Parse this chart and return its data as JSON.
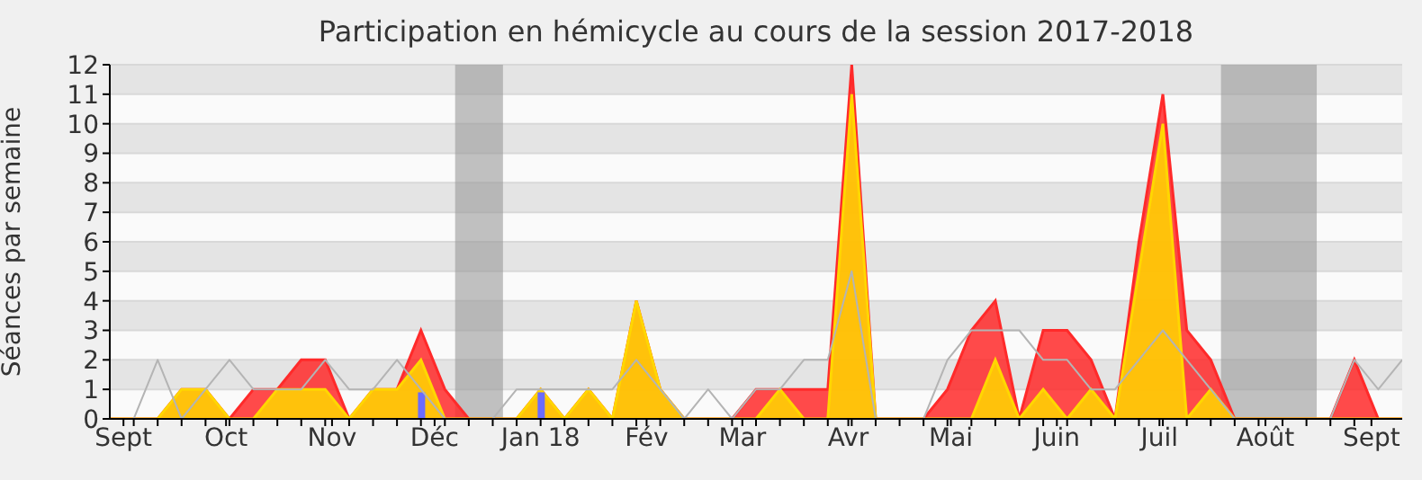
{
  "chart_data": {
    "type": "area",
    "title": "Participation en hémicycle au cours de la session 2017-2018",
    "ylabel": "Séances par semaine",
    "x": [
      "2017-08-28",
      "2017-09-04",
      "2017-09-11",
      "2017-09-18",
      "2017-09-25",
      "2017-10-02",
      "2017-10-09",
      "2017-10-16",
      "2017-10-23",
      "2017-10-30",
      "2017-11-06",
      "2017-11-13",
      "2017-11-20",
      "2017-11-27",
      "2017-12-04",
      "2017-12-11",
      "2017-12-18",
      "2017-12-25",
      "2018-01-01",
      "2018-01-08",
      "2018-01-15",
      "2018-01-22",
      "2018-01-29",
      "2018-02-05",
      "2018-02-12",
      "2018-02-19",
      "2018-02-26",
      "2018-03-05",
      "2018-03-12",
      "2018-03-19",
      "2018-03-26",
      "2018-04-02",
      "2018-04-09",
      "2018-04-16",
      "2018-04-23",
      "2018-04-30",
      "2018-05-07",
      "2018-05-14",
      "2018-05-21",
      "2018-05-28",
      "2018-06-04",
      "2018-06-11",
      "2018-06-18",
      "2018-06-25",
      "2018-07-02",
      "2018-07-09",
      "2018-07-16",
      "2018-07-23",
      "2018-07-30",
      "2018-08-06",
      "2018-08-13",
      "2018-08-20",
      "2018-08-27",
      "2018-09-03",
      "2018-09-10"
    ],
    "series": [
      {
        "color": "#ff2a2a",
        "values": [
          0,
          0,
          0,
          1,
          1,
          0,
          1,
          1,
          2,
          2,
          0,
          1,
          1,
          3,
          1,
          0,
          0,
          0,
          1,
          0,
          1,
          0,
          4,
          1,
          0,
          0,
          0,
          1,
          1,
          1,
          1,
          12,
          0,
          0,
          0,
          1,
          3,
          4,
          0,
          3,
          3,
          2,
          0,
          6,
          11,
          3,
          2,
          0,
          0,
          0,
          0,
          0,
          2,
          0,
          0
        ]
      },
      {
        "color": "#ffd700",
        "values": [
          0,
          0,
          0,
          1,
          1,
          0,
          0,
          1,
          1,
          1,
          0,
          1,
          1,
          2,
          0,
          0,
          0,
          0,
          1,
          0,
          1,
          0,
          4,
          1,
          0,
          0,
          0,
          0,
          1,
          0,
          0,
          11,
          0,
          0,
          0,
          0,
          0,
          2,
          0,
          1,
          0,
          1,
          0,
          5,
          10,
          0,
          1,
          0,
          0,
          0,
          0,
          0,
          0,
          0,
          0
        ]
      },
      {
        "type": "line",
        "color": "#b4b4b4",
        "values": [
          0,
          0,
          2,
          0,
          1,
          2,
          1,
          1,
          1,
          2,
          1,
          1,
          2,
          1,
          0,
          0,
          0,
          1,
          1,
          1,
          1,
          1,
          2,
          1,
          0,
          1,
          0,
          1,
          1,
          2,
          2,
          5,
          0,
          0,
          0,
          2,
          3,
          3,
          3,
          2,
          2,
          1,
          1,
          2,
          3,
          2,
          1,
          0,
          0,
          0,
          0,
          0,
          2,
          1,
          2
        ]
      },
      {
        "type": "bar",
        "color": "#6b6bff",
        "values": [
          null,
          null,
          null,
          null,
          null,
          null,
          null,
          null,
          null,
          null,
          null,
          null,
          null,
          0.9,
          null,
          null,
          null,
          null,
          0.9,
          null,
          null,
          null,
          null,
          null,
          null,
          null,
          null,
          null,
          null,
          null,
          null,
          null,
          null,
          null,
          null,
          null,
          null,
          null,
          null,
          null,
          null,
          null,
          null,
          null,
          null,
          null,
          null,
          null,
          null,
          null,
          null,
          null,
          null,
          null,
          null
        ]
      }
    ],
    "xlim": [
      "2017-08-28",
      "2018-09-10"
    ],
    "xticks": [
      {
        "value": "2017-09-01",
        "label": "Sept"
      },
      {
        "value": "2017-10-01",
        "label": "Oct"
      },
      {
        "value": "2017-11-01",
        "label": "Nov"
      },
      {
        "value": "2017-12-01",
        "label": "Déc"
      },
      {
        "value": "2018-01-01",
        "label": "Jan 18"
      },
      {
        "value": "2018-02-01",
        "label": "Fév"
      },
      {
        "value": "2018-03-01",
        "label": "Mar"
      },
      {
        "value": "2018-04-01",
        "label": "Avr"
      },
      {
        "value": "2018-05-01",
        "label": "Mai"
      },
      {
        "value": "2018-06-01",
        "label": "Juin"
      },
      {
        "value": "2018-07-01",
        "label": "Juil"
      },
      {
        "value": "2018-08-01",
        "label": "Août"
      },
      {
        "value": "2018-09-01",
        "label": "Sept"
      },
      {
        "value": "2017-09-04",
        "label": null
      },
      {
        "value": "2017-09-11",
        "label": null
      },
      {
        "value": "2017-09-18",
        "label": null
      },
      {
        "value": "2017-09-25",
        "label": null
      },
      {
        "value": "2017-10-02",
        "label": null
      },
      {
        "value": "2017-10-09",
        "label": null
      },
      {
        "value": "2017-10-16",
        "label": null
      },
      {
        "value": "2017-10-23",
        "label": null
      },
      {
        "value": "2017-10-30",
        "label": null
      },
      {
        "value": "2017-11-06",
        "label": null
      },
      {
        "value": "2017-11-13",
        "label": null
      },
      {
        "value": "2017-11-20",
        "label": null
      },
      {
        "value": "2017-11-27",
        "label": null
      },
      {
        "value": "2017-12-04",
        "label": null
      },
      {
        "value": "2017-12-11",
        "label": null
      },
      {
        "value": "2017-12-18",
        "label": null
      },
      {
        "value": "2017-12-25",
        "label": null
      },
      {
        "value": "2018-01-08",
        "label": null
      },
      {
        "value": "2018-01-15",
        "label": null
      },
      {
        "value": "2018-01-22",
        "label": null
      },
      {
        "value": "2018-01-29",
        "label": null
      },
      {
        "value": "2018-02-05",
        "label": null
      },
      {
        "value": "2018-02-12",
        "label": null
      },
      {
        "value": "2018-02-19",
        "label": null
      },
      {
        "value": "2018-02-26",
        "label": null
      },
      {
        "value": "2018-03-05",
        "label": null
      },
      {
        "value": "2018-03-12",
        "label": null
      },
      {
        "value": "2018-03-19",
        "label": null
      },
      {
        "value": "2018-03-26",
        "label": null
      },
      {
        "value": "2018-04-02",
        "label": null
      },
      {
        "value": "2018-04-09",
        "label": null
      },
      {
        "value": "2018-04-16",
        "label": null
      },
      {
        "value": "2018-04-23",
        "label": null
      },
      {
        "value": "2018-04-30",
        "label": null
      },
      {
        "value": "2018-05-07",
        "label": null
      },
      {
        "value": "2018-05-14",
        "label": null
      },
      {
        "value": "2018-05-21",
        "label": null
      },
      {
        "value": "2018-05-28",
        "label": null
      },
      {
        "value": "2018-06-04",
        "label": null
      },
      {
        "value": "2018-06-11",
        "label": null
      },
      {
        "value": "2018-06-18",
        "label": null
      },
      {
        "value": "2018-06-25",
        "label": null
      },
      {
        "value": "2018-07-02",
        "label": null
      },
      {
        "value": "2018-07-09",
        "label": null
      },
      {
        "value": "2018-07-16",
        "label": null
      },
      {
        "value": "2018-07-23",
        "label": null
      },
      {
        "value": "2018-07-30",
        "label": null
      },
      {
        "value": "2018-08-06",
        "label": null
      },
      {
        "value": "2018-08-13",
        "label": null
      },
      {
        "value": "2018-08-20",
        "label": null
      },
      {
        "value": "2018-08-27",
        "label": null
      }
    ],
    "ylim": [
      0,
      12
    ],
    "yticks": [
      0,
      1,
      2,
      3,
      4,
      5,
      6,
      7,
      8,
      9,
      10,
      11,
      12
    ],
    "grid": "y",
    "bands": [
      {
        "axis": "x",
        "from": "2017-12-07",
        "to": "2017-12-21",
        "color": "#999999"
      },
      {
        "axis": "x",
        "from": "2018-07-19",
        "to": "2018-08-16",
        "color": "#999999"
      }
    ]
  }
}
